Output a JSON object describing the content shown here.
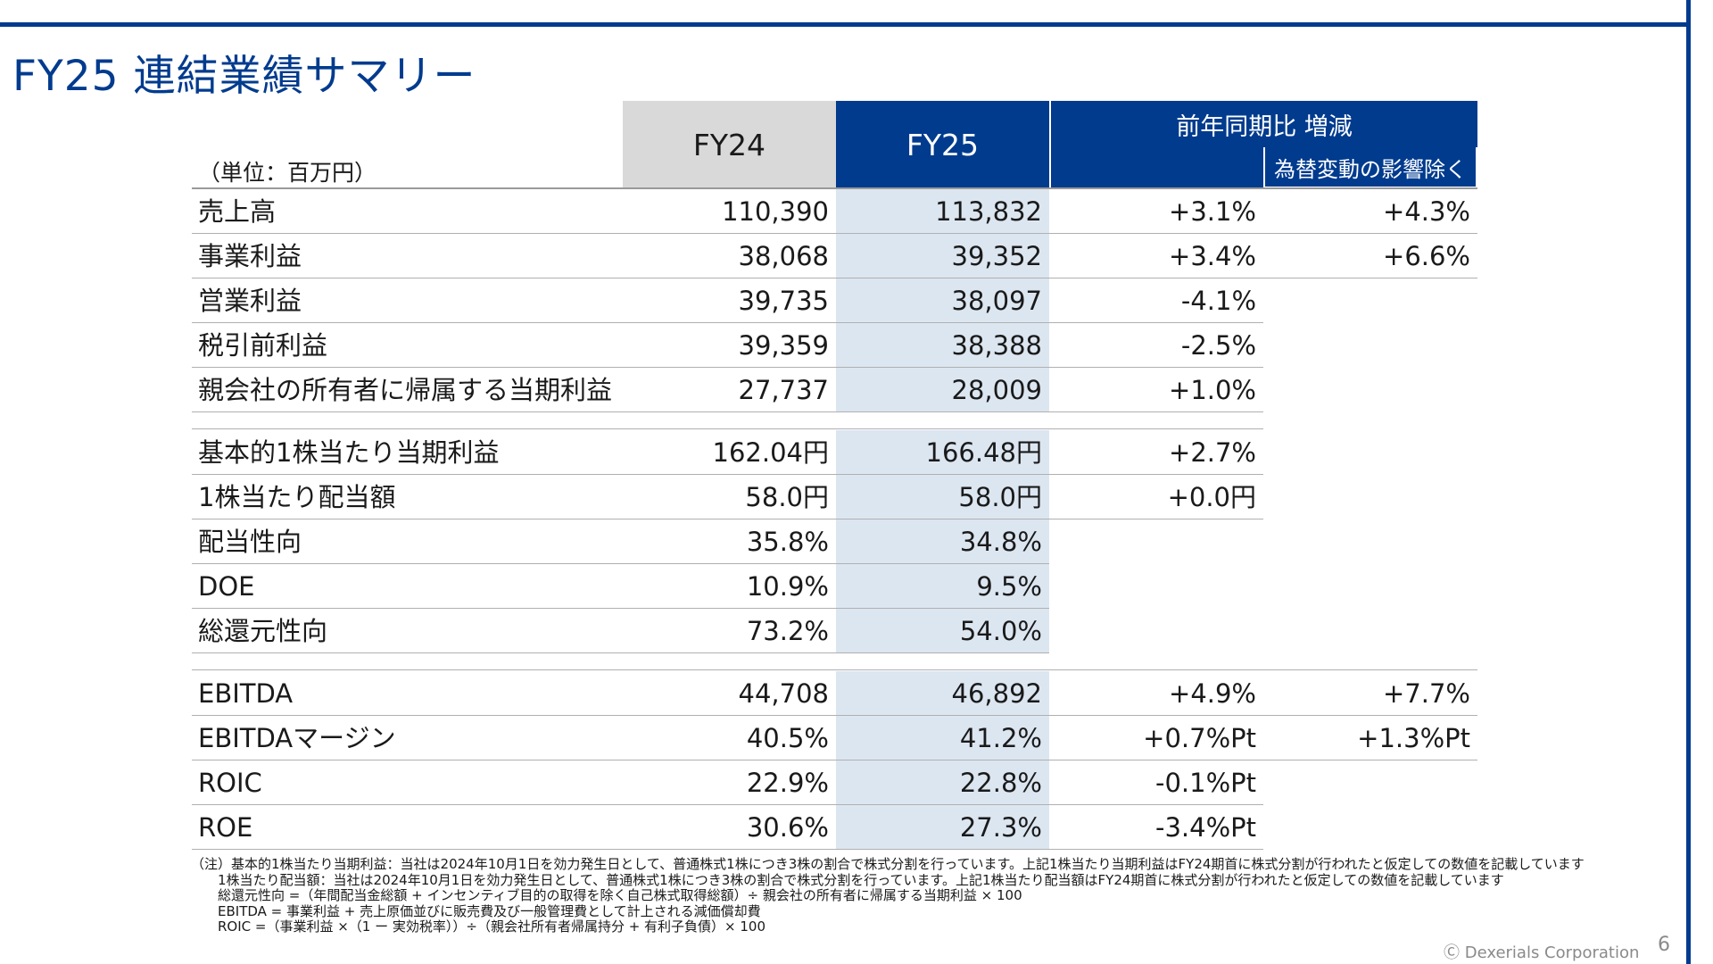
{
  "title": "FY25 連結業績サマリー",
  "unit": "（単位：百万円）",
  "headers": {
    "fy24": "FY24",
    "fy25": "FY25",
    "yoy": "前年同期比 増減",
    "fx": "為替変動の影響除く"
  },
  "groups": [
    {
      "rows": [
        {
          "label": "売上高",
          "fy24": "110,390",
          "fy25": "113,832",
          "yoy": "+3.1%",
          "fx": "+4.3%"
        },
        {
          "label": "事業利益",
          "fy24": "38,068",
          "fy25": "39,352",
          "yoy": "+3.4%",
          "fx": "+6.6%"
        },
        {
          "label": "営業利益",
          "fy24": "39,735",
          "fy25": "38,097",
          "yoy": "-4.1%",
          "fx": ""
        },
        {
          "label": "税引前利益",
          "fy24": "39,359",
          "fy25": "38,388",
          "yoy": "-2.5%",
          "fx": ""
        },
        {
          "label": "親会社の所有者に帰属する当期利益",
          "fy24": "27,737",
          "fy25": "28,009",
          "yoy": "+1.0%",
          "fx": ""
        }
      ]
    },
    {
      "rows": [
        {
          "label": "基本的1株当たり当期利益",
          "fy24": "162.04円",
          "fy25": "166.48円",
          "yoy": "+2.7%",
          "fx": ""
        },
        {
          "label": "1株当たり配当額",
          "fy24": "58.0円",
          "fy25": "58.0円",
          "yoy": "+0.0円",
          "fx": ""
        },
        {
          "label": "配当性向",
          "fy24": "35.8%",
          "fy25": "34.8%",
          "yoy": "",
          "fx": ""
        },
        {
          "label": "DOE",
          "fy24": "10.9%",
          "fy25": "9.5%",
          "yoy": "",
          "fx": ""
        },
        {
          "label": "総還元性向",
          "fy24": "73.2%",
          "fy25": "54.0%",
          "yoy": "",
          "fx": ""
        }
      ]
    },
    {
      "rows": [
        {
          "label": "EBITDA",
          "fy24": "44,708",
          "fy25": "46,892",
          "yoy": "+4.9%",
          "fx": "+7.7%"
        },
        {
          "label": "EBITDAマージン",
          "fy24": "40.5%",
          "fy25": "41.2%",
          "yoy": "+0.7%Pt",
          "fx": "+1.3%Pt"
        },
        {
          "label": "ROIC",
          "fy24": "22.9%",
          "fy25": "22.8%",
          "yoy": "-0.1%Pt",
          "fx": ""
        },
        {
          "label": "ROE",
          "fy24": "30.6%",
          "fy25": "27.3%",
          "yoy": "-3.4%Pt",
          "fx": ""
        }
      ]
    }
  ],
  "notes": [
    "（注）基本的1株当たり当期利益：当社は2024年10月1日を効力発生日として、普通株式1株につき3株の割合で株式分割を行っています。上記1株当たり当期利益はFY24期首に株式分割が行われたと仮定しての数値を記載しています",
    "1株当たり配当額：当社は2024年10月1日を効力発生日として、普通株式1株につき3株の割合で株式分割を行っています。上記1株当たり配当額はFY24期首に株式分割が行われたと仮定しての数値を記載しています",
    "総還元性向 =（年間配当金総額 + インセンティブ目的の取得を除く自己株式取得総額）÷ 親会社の所有者に帰属する当期利益 × 100",
    "EBITDA = 事業利益 + 売上原価並びに販売費及び一般管理費として計上される減価償却費",
    "ROIC =（事業利益 ×（1 ー 実効税率））÷（親会社所有者帰属持分 + 有利子負債）× 100"
  ],
  "copyright": "Ⓒ Dexerials Corporation",
  "page_number": "6",
  "colors": {
    "brand_blue": "#003b8e",
    "fy24_header": "#d9d9d9",
    "fy25_column": "#dce6f1"
  }
}
